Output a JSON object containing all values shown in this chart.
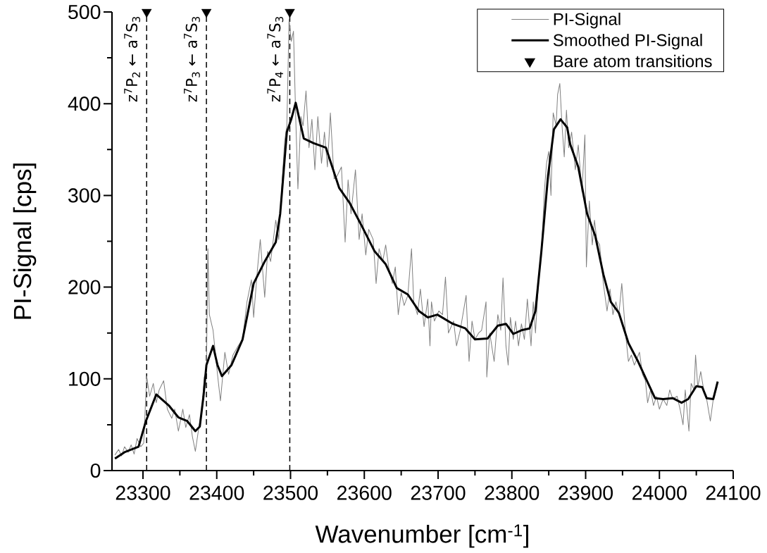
{
  "chart_data": {
    "type": "line",
    "xlabel": "Wavenumber [cm$^{-1}$]",
    "ylabel": "PI-Signal [cps]",
    "xlim": [
      23258,
      24100
    ],
    "ylim": [
      0,
      500
    ],
    "xticks": [
      23300,
      {
        "value": 23350,
        "label": null
      },
      23400,
      {
        "value": 23450,
        "label": null
      },
      23500,
      {
        "value": 23550,
        "label": null
      },
      23600,
      {
        "value": 23650,
        "label": null
      },
      23700,
      {
        "value": 23750,
        "label": null
      },
      23800,
      {
        "value": 23850,
        "label": null
      },
      23900,
      {
        "value": 23950,
        "label": null
      },
      24000,
      {
        "value": 24050,
        "label": null
      },
      24100
    ],
    "yticks": [
      0,
      {
        "value": 50,
        "label": null
      },
      100,
      {
        "value": 150,
        "label": null
      },
      200,
      {
        "value": 250,
        "label": null
      },
      300,
      {
        "value": 350,
        "label": null
      },
      400,
      {
        "value": 450,
        "label": null
      },
      500
    ],
    "legend": "top right",
    "series": [
      {
        "name": "PI-Signal",
        "color": "#808080",
        "x": [
          23262,
          23267,
          23271,
          23275,
          23280,
          23284,
          23288,
          23292,
          23297,
          23301,
          23305,
          23309,
          23314,
          23318,
          23322,
          23328,
          23333,
          23339,
          23343,
          23348,
          23354,
          23358,
          23363,
          23367,
          23371,
          23375,
          23380,
          23383,
          23386,
          23388,
          23390,
          23395,
          23401,
          23405,
          23411,
          23416,
          23422,
          23429,
          23435,
          23441,
          23447,
          23450,
          23455,
          23459,
          23465,
          23469,
          23473,
          23480,
          23484,
          23488,
          23492,
          23495,
          23498,
          23501,
          23504,
          23507,
          23510,
          23514,
          23517,
          23521,
          23525,
          23529,
          23533,
          23537,
          23542,
          23546,
          23550,
          23554,
          23559,
          23563,
          23569,
          23574,
          23578,
          23582,
          23588,
          23593,
          23597,
          23602,
          23606,
          23612,
          23616,
          23620,
          23625,
          23629,
          23633,
          23638,
          23642,
          23646,
          23650,
          23654,
          23659,
          23664,
          23667,
          23672,
          23676,
          23681,
          23686,
          23689,
          23691,
          23695,
          23701,
          23706,
          23710,
          23714,
          23721,
          23725,
          23730,
          23733,
          23738,
          23742,
          23746,
          23750,
          23755,
          23759,
          23765,
          23766,
          23770,
          23776,
          23781,
          23785,
          23788,
          23792,
          23795,
          23798,
          23802,
          23805,
          23809,
          23813,
          23817,
          23821,
          23826,
          23829,
          23832,
          23836,
          23841,
          23844,
          23847,
          23850,
          23853,
          23856,
          23860,
          23862,
          23865,
          23868,
          23871,
          23874,
          23877,
          23881,
          23886,
          23890,
          23895,
          23899,
          23901,
          23905,
          23909,
          23912,
          23915,
          23919,
          23924,
          23929,
          23933,
          23937,
          23941,
          23945,
          23949,
          23954,
          23958,
          23962,
          23966,
          23973,
          23977,
          23981,
          23984,
          23988,
          23992,
          23996,
          24000,
          24005,
          24010,
          24014,
          24018,
          24024,
          24028,
          24032,
          24035,
          24040,
          24043,
          24047,
          24049,
          24052,
          24056,
          24060,
          24064,
          24069,
          24073,
          24078
        ],
        "values": [
          17,
          23,
          16,
          26,
          20,
          28,
          18,
          35,
          26,
          30,
          103,
          81,
          95,
          74,
          88,
          98,
          67,
          57,
          67,
          43,
          67,
          47,
          61,
          37,
          21,
          43,
          67,
          102,
          108,
          242,
          170,
          153,
          105,
          76,
          129,
          105,
          126,
          136,
          143,
          184,
          208,
          167,
          218,
          252,
          189,
          239,
          228,
          273,
          252,
          307,
          359,
          376,
          492,
          468,
          479,
          386,
          307,
          386,
          376,
          414,
          352,
          383,
          328,
          386,
          335,
          369,
          331,
          390,
          318,
          321,
          331,
          249,
          317,
          280,
          328,
          252,
          280,
          235,
          263,
          252,
          204,
          242,
          228,
          246,
          222,
          204,
          222,
          170,
          194,
          180,
          191,
          242,
          184,
          170,
          198,
          157,
          187,
          136,
          184,
          163,
          174,
          170,
          211,
          150,
          163,
          136,
          153,
          167,
          191,
          119,
          163,
          143,
          150,
          153,
          184,
          102,
          150,
          119,
          170,
          153,
          210,
          136,
          115,
          167,
          143,
          163,
          136,
          160,
          143,
          187,
          136,
          184,
          150,
          204,
          252,
          304,
          335,
          348,
          300,
          390,
          376,
          410,
          422,
          376,
          342,
          393,
          352,
          369,
          328,
          355,
          304,
          366,
          222,
          294,
          246,
          273,
          252,
          246,
          204,
          174,
          198,
          170,
          184,
          170,
          204,
          150,
          119,
          126,
          115,
          129,
          105,
          98,
          74,
          88,
          71,
          81,
          67,
          78,
          71,
          88,
          78,
          81,
          67,
          50,
          88,
          43,
          95,
          88,
          126,
          91,
          108,
          88,
          78,
          54,
          78,
          91
        ]
      },
      {
        "name": "Smoothed PI-Signal",
        "color": "#000000",
        "x": [
          23262,
          23275,
          23294,
          23304,
          23318,
          23335,
          23348,
          23360,
          23371,
          23377,
          23382,
          23386,
          23395,
          23401,
          23407,
          23420,
          23435,
          23450,
          23465,
          23480,
          23486,
          23495,
          23501,
          23507,
          23518,
          23531,
          23548,
          23566,
          23580,
          23597,
          23614,
          23629,
          23644,
          23659,
          23674,
          23686,
          23699,
          23720,
          23737,
          23750,
          23767,
          23781,
          23792,
          23802,
          23813,
          23824,
          23832,
          23840,
          23849,
          23857,
          23866,
          23875,
          23879,
          23890,
          23902,
          23913,
          23924,
          23934,
          23945,
          23958,
          23971,
          23983,
          23994,
          24005,
          24018,
          24030,
          24039,
          24050,
          24058,
          24064,
          24073,
          24079
        ],
        "values": [
          13,
          20,
          26,
          54,
          83,
          71,
          58,
          54,
          43,
          48,
          81,
          115,
          136,
          115,
          103,
          115,
          143,
          204,
          228,
          249,
          280,
          369,
          383,
          401,
          362,
          357,
          352,
          308,
          292,
          266,
          239,
          225,
          199,
          192,
          174,
          167,
          170,
          160,
          155,
          143,
          144,
          158,
          160,
          149,
          153,
          155,
          174,
          239,
          321,
          372,
          383,
          374,
          356,
          331,
          280,
          256,
          214,
          184,
          172,
          139,
          119,
          98,
          79,
          78,
          79,
          74,
          78,
          92,
          91,
          79,
          78,
          97
        ]
      },
      {
        "name": "Bare atom transitions",
        "type": "scatter",
        "color": "#000000",
        "marker": "triangle",
        "x": [
          23305,
          23386,
          23499
        ],
        "values": [
          500,
          500,
          500
        ]
      }
    ],
    "ref_lines": [
      {
        "axis": "x",
        "value": 23305,
        "label": "z$^{7}$P$_{2}$ ← a$^{7}$S$_{3}$",
        "line_style": "dashed",
        "color": "#000000"
      },
      {
        "axis": "x",
        "value": 23386,
        "label": "z$^{7}$P$_{3}$ ← a$^{7}$S$_{3}$",
        "line_style": "dashed",
        "color": "#000000"
      },
      {
        "axis": "x",
        "value": 23499,
        "label": "z$^{7}$P$_{4}$ ← a$^{7}$S$_{3}$",
        "line_style": "dashed",
        "color": "#000000"
      }
    ]
  }
}
